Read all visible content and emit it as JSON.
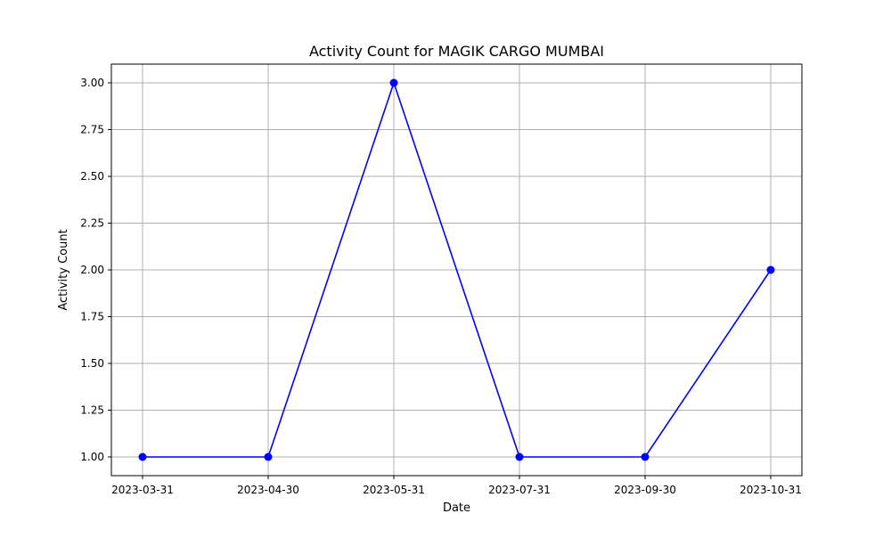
{
  "chart_data": {
    "type": "line",
    "title": "Activity Count for MAGIK CARGO MUMBAI",
    "xlabel": "Date",
    "ylabel": "Activity Count",
    "categories": [
      "2023-03-31",
      "2023-04-30",
      "2023-05-31",
      "2023-07-31",
      "2023-09-30",
      "2023-10-31"
    ],
    "series": [
      {
        "values": [
          1,
          1,
          3,
          1,
          1,
          2
        ],
        "color": "#0000ff",
        "marker": "circle"
      }
    ],
    "ylim": [
      0.9,
      3.1
    ],
    "yticks": [
      "1.00",
      "1.25",
      "1.50",
      "1.75",
      "2.00",
      "2.25",
      "2.50",
      "2.75",
      "3.00"
    ],
    "grid": true,
    "grid_color": "#b0b0b0",
    "line_color": "#0000ff"
  }
}
